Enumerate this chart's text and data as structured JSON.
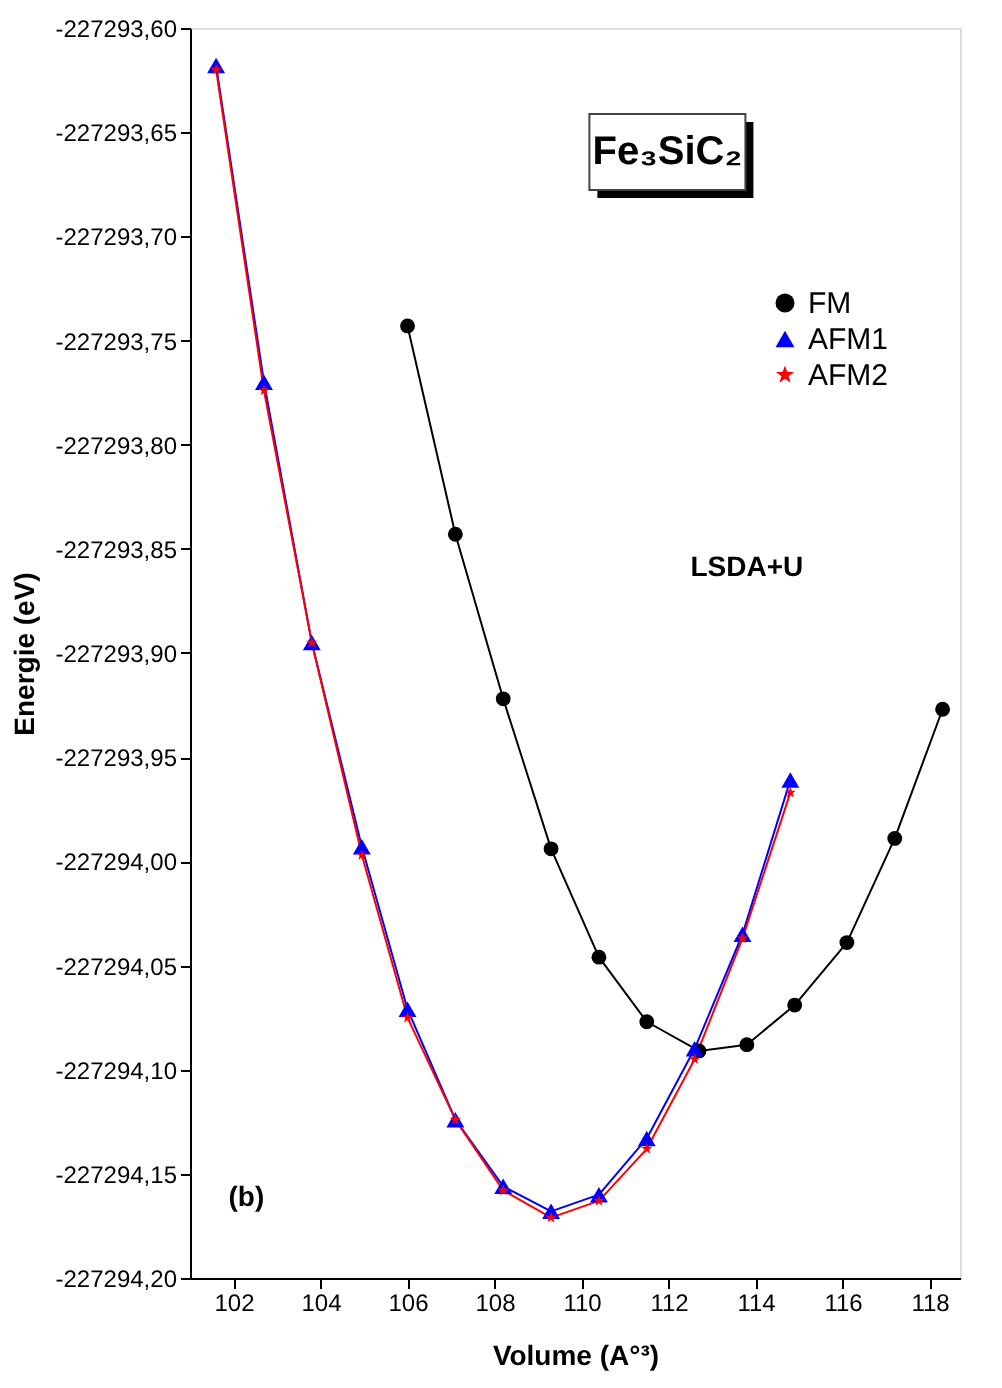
{
  "chart_data": {
    "type": "line",
    "xlabel": "Volume (A°³)",
    "ylabel": "Energie (eV)",
    "annotations": [
      "Fe₃SiC₂",
      "LSDA+U",
      "(b)"
    ],
    "xlim": [
      101,
      118.7
    ],
    "xticks": [
      102,
      104,
      106,
      108,
      110,
      112,
      114,
      116,
      118
    ],
    "ylim": [
      -227294.2,
      -227293.6
    ],
    "yticks": [
      {
        "value": -227294.2,
        "label": "-227294,20"
      },
      {
        "value": -227294.15,
        "label": "-227294,15"
      },
      {
        "value": -227294.1,
        "label": "-227294,10"
      },
      {
        "value": -227294.05,
        "label": "-227294,05"
      },
      {
        "value": -227294.0,
        "label": "-227294,00"
      },
      {
        "value": -227293.95,
        "label": "-227293,95"
      },
      {
        "value": -227293.9,
        "label": "-227293,90"
      },
      {
        "value": -227293.85,
        "label": "-227293,85"
      },
      {
        "value": -227293.8,
        "label": "-227293,80"
      },
      {
        "value": -227293.75,
        "label": "-227293,75"
      },
      {
        "value": -227293.7,
        "label": "-227293,70"
      },
      {
        "value": -227293.65,
        "label": "-227293,65"
      },
      {
        "value": -227293.6,
        "label": "-227293,60"
      }
    ],
    "grid": false,
    "legend": "top right",
    "line_style": "solid",
    "series": [
      {
        "name": "FM",
        "color": "#000000",
        "marker": "circle",
        "x": [
          106.0,
          107.1,
          108.2,
          109.3,
          110.4,
          111.5,
          112.7,
          113.8,
          114.9,
          116.1,
          117.2,
          118.3
        ],
        "values": [
          -227293.743,
          -227293.843,
          -227293.922,
          -227293.994,
          -227294.046,
          -227294.077,
          -227294.091,
          -227294.088,
          -227294.069,
          -227294.039,
          -227293.989,
          -227293.927
        ]
      },
      {
        "name": "AFM1",
        "color": "#0000ff",
        "marker": "triangle",
        "x": [
          101.6,
          102.7,
          103.8,
          104.95,
          106.0,
          107.1,
          108.2,
          109.3,
          110.4,
          111.5,
          112.6,
          113.7,
          114.8
        ],
        "values": [
          -227293.618,
          -227293.77,
          -227293.895,
          -227293.993,
          -227294.071,
          -227294.124,
          -227294.156,
          -227294.168,
          -227294.16,
          -227294.133,
          -227294.09,
          -227294.035,
          -227293.961
        ]
      },
      {
        "name": "AFM2",
        "color": "#ff0000",
        "marker": "star",
        "x": [
          101.6,
          102.7,
          103.8,
          104.95,
          106.0,
          107.1,
          108.2,
          109.3,
          110.4,
          111.5,
          112.6,
          113.7,
          114.8
        ],
        "values": [
          -227293.62,
          -227293.774,
          -227293.895,
          -227293.997,
          -227294.075,
          -227294.124,
          -227294.158,
          -227294.171,
          -227294.163,
          -227294.138,
          -227294.095,
          -227294.037,
          -227293.967
        ]
      }
    ]
  }
}
